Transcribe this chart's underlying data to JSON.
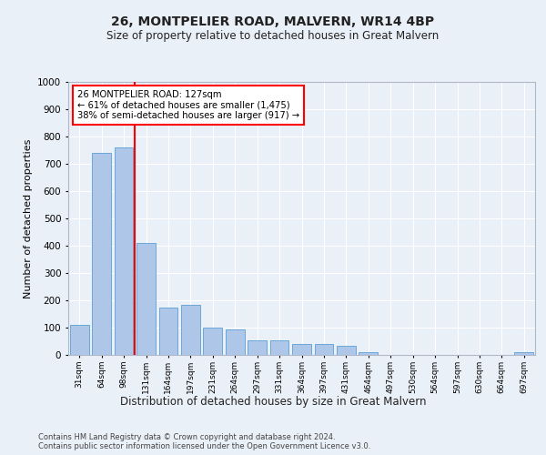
{
  "title_line1": "26, MONTPELIER ROAD, MALVERN, WR14 4BP",
  "title_line2": "Size of property relative to detached houses in Great Malvern",
  "xlabel": "Distribution of detached houses by size in Great Malvern",
  "ylabel": "Number of detached properties",
  "footnote": "Contains HM Land Registry data © Crown copyright and database right 2024.\nContains public sector information licensed under the Open Government Licence v3.0.",
  "categories": [
    "31sqm",
    "64sqm",
    "98sqm",
    "131sqm",
    "164sqm",
    "197sqm",
    "231sqm",
    "264sqm",
    "297sqm",
    "331sqm",
    "364sqm",
    "397sqm",
    "431sqm",
    "464sqm",
    "497sqm",
    "530sqm",
    "564sqm",
    "597sqm",
    "630sqm",
    "664sqm",
    "697sqm"
  ],
  "values": [
    110,
    740,
    760,
    410,
    175,
    185,
    100,
    95,
    55,
    55,
    40,
    40,
    35,
    10,
    0,
    0,
    0,
    0,
    0,
    0,
    10
  ],
  "bar_color": "#aec6e8",
  "bar_edge_color": "#5a9fd4",
  "vline_color": "red",
  "annotation_title": "26 MONTPELIER ROAD: 127sqm",
  "annotation_line1": "← 61% of detached houses are smaller (1,475)",
  "annotation_line2": "38% of semi-detached houses are larger (917) →",
  "annotation_box_color": "white",
  "annotation_box_edge_color": "red",
  "ylim": [
    0,
    1000
  ],
  "yticks": [
    0,
    100,
    200,
    300,
    400,
    500,
    600,
    700,
    800,
    900,
    1000
  ],
  "bg_color": "#eaf0f8",
  "plot_bg_color": "#eaf0f8",
  "grid_color": "white"
}
